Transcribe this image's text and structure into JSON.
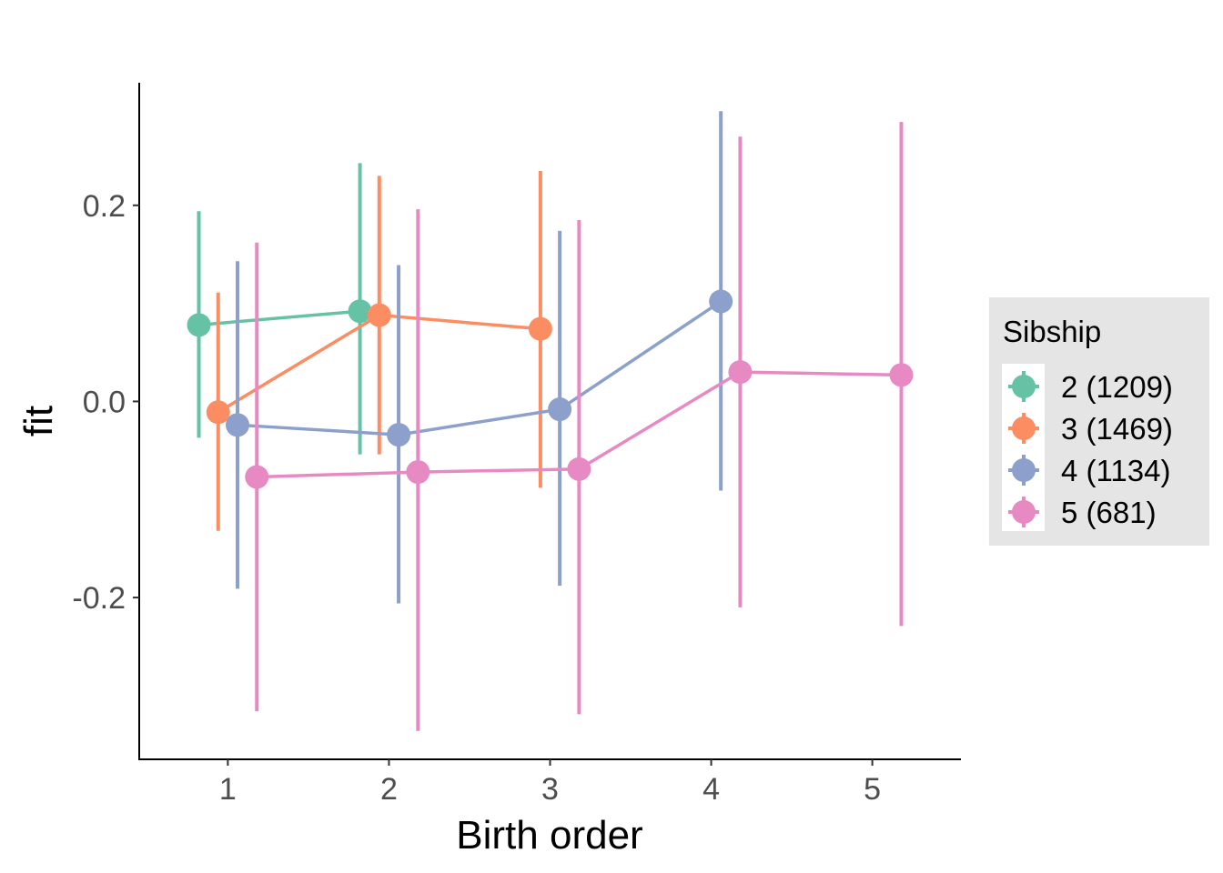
{
  "chart_data": {
    "type": "line",
    "title": "",
    "xlabel": "Birth order",
    "ylabel": "fit",
    "xlim": [
      0.45,
      5.55
    ],
    "ylim": [
      -0.365,
      0.325
    ],
    "x_ticks": [
      1,
      2,
      3,
      4,
      5
    ],
    "x_tick_labels": [
      "1",
      "2",
      "3",
      "4",
      "5"
    ],
    "y_ticks": [
      0.2,
      0.0,
      -0.2
    ],
    "y_tick_labels": [
      "0.2",
      "0.0",
      "-0.2"
    ],
    "grid": false,
    "legend": {
      "title": "Sibship",
      "placement": "right"
    },
    "series": [
      {
        "name": "2 (1209)",
        "color": "#66c2a5",
        "dodge": -0.18,
        "x": [
          1,
          2
        ],
        "values": [
          0.078,
          0.092
        ],
        "lower": [
          -0.037,
          -0.054
        ],
        "upper": [
          0.194,
          0.243
        ]
      },
      {
        "name": "3 (1469)",
        "color": "#fc8d62",
        "dodge": -0.06,
        "x": [
          1,
          2,
          3
        ],
        "values": [
          -0.011,
          0.088,
          0.074
        ],
        "lower": [
          -0.132,
          -0.054,
          -0.088
        ],
        "upper": [
          0.111,
          0.23,
          0.235
        ]
      },
      {
        "name": "4 (1134)",
        "color": "#8da0cb",
        "dodge": 0.06,
        "x": [
          1,
          2,
          3,
          4
        ],
        "values": [
          -0.024,
          -0.034,
          -0.008,
          0.102
        ],
        "lower": [
          -0.191,
          -0.206,
          -0.188,
          -0.091
        ],
        "upper": [
          0.143,
          0.139,
          0.174,
          0.296
        ]
      },
      {
        "name": "5 (681)",
        "color": "#e78ac3",
        "dodge": 0.18,
        "x": [
          1,
          2,
          3,
          4,
          5
        ],
        "values": [
          -0.077,
          -0.072,
          -0.069,
          0.03,
          0.027
        ],
        "lower": [
          -0.316,
          -0.336,
          -0.319,
          -0.21,
          -0.229
        ],
        "upper": [
          0.162,
          0.196,
          0.185,
          0.27,
          0.285
        ]
      }
    ]
  }
}
